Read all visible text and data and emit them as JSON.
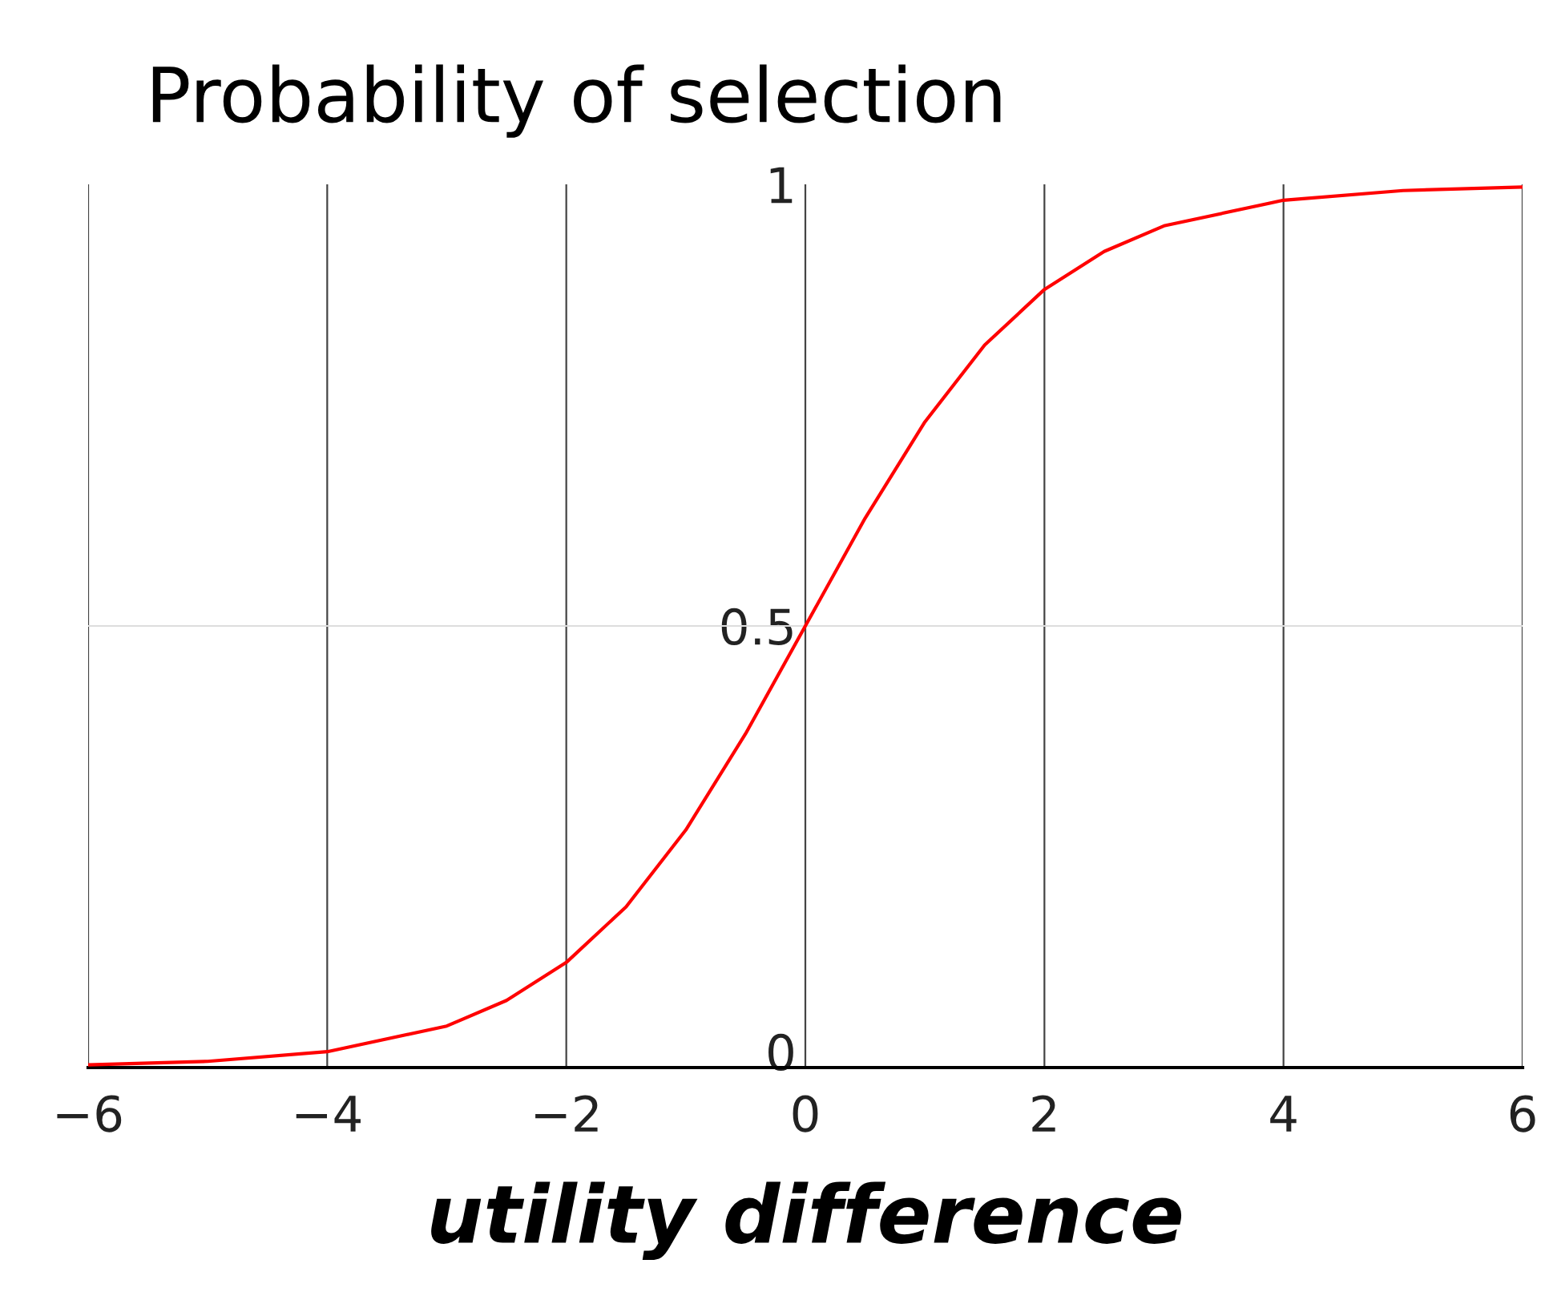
{
  "chart_data": {
    "type": "line",
    "title": "Probability of selection",
    "xlabel": "utility difference",
    "x": [
      -6,
      -5,
      -4,
      -3,
      -2.5,
      -2,
      -1.5,
      -1,
      -0.5,
      0,
      0.5,
      1,
      1.5,
      2,
      2.5,
      3,
      4,
      5,
      6
    ],
    "series": [
      {
        "color": "#ff0000",
        "values": [
          0.003,
          0.007,
          0.018,
          0.047,
          0.076,
          0.119,
          0.182,
          0.269,
          0.378,
          0.5,
          0.622,
          0.731,
          0.818,
          0.881,
          0.924,
          0.953,
          0.982,
          0.993,
          0.997
        ]
      }
    ],
    "xlim": [
      -6,
      6
    ],
    "xticks": [
      {
        "value": -6,
        "label": "−6"
      },
      {
        "value": -4,
        "label": "−4"
      },
      {
        "value": -2,
        "label": "−2"
      },
      0,
      2,
      4,
      6
    ],
    "ylim": [
      0,
      1
    ],
    "yticks": [
      0,
      0.5,
      1
    ],
    "grid": "x",
    "ref_lines": [
      {
        "axis": "y",
        "value": 0.5,
        "color": "#dddddd"
      }
    ]
  }
}
